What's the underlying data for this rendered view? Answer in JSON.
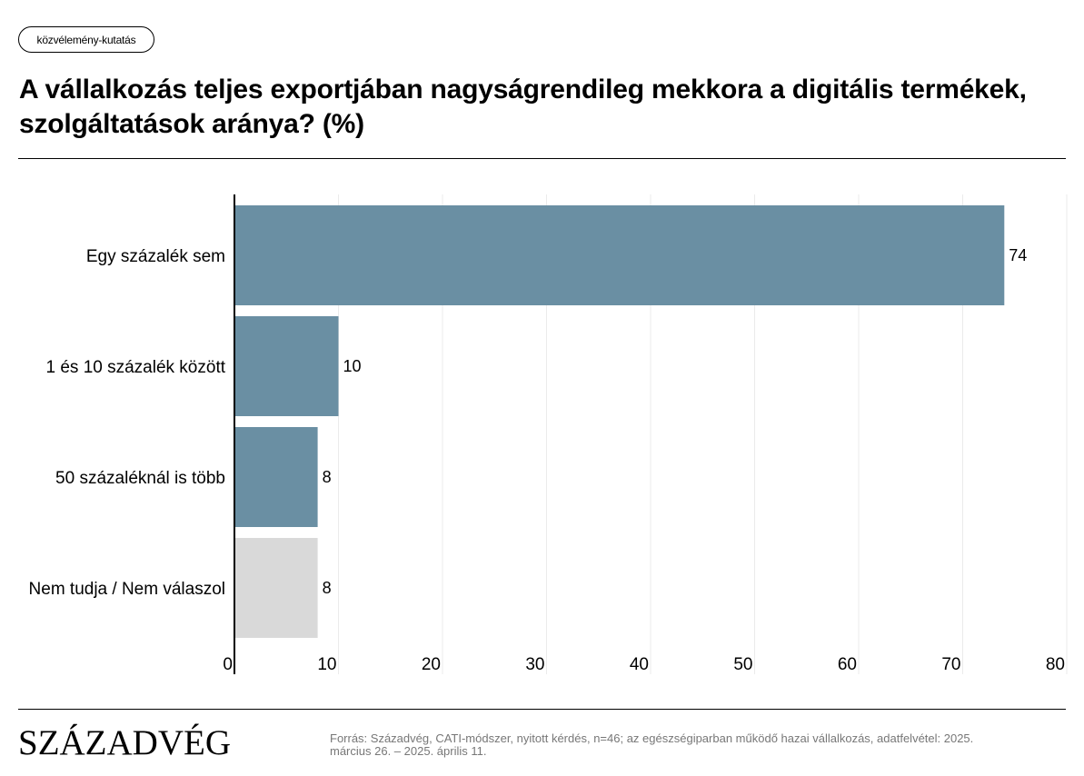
{
  "tag": "közvélemény-kutatás",
  "title": "A vállalkozás teljes exportjában nagyságrendileg mekkora a digitális termékek, szolgáltatások aránya? (%)",
  "logo": "SZÁZADVÉG",
  "source": "Forrás: Századvég, CATI-módszer, nyitott kérdés, n=46; az egészségiparban működő hazai vállalkozás, adatfelvétel: 2025. március 26. – 2025. április 11.",
  "colors": {
    "bar": "#6a8fa3",
    "bar_muted": "#d9d9d9",
    "grid": "#ebebeb"
  },
  "chart_data": {
    "type": "bar",
    "orientation": "horizontal",
    "categories": [
      "Egy százalék sem",
      "1 és 10 százalék között",
      "50 százaléknál is több",
      "Nem tudja / Nem válaszol"
    ],
    "values": [
      74,
      10,
      8,
      8
    ],
    "value_labels": [
      "74",
      "10",
      "8",
      "8"
    ],
    "muted": [
      false,
      false,
      false,
      true
    ],
    "xlim": [
      0,
      80
    ],
    "xticks": [
      0,
      10,
      20,
      30,
      40,
      50,
      60,
      70,
      80
    ],
    "grid": true
  }
}
